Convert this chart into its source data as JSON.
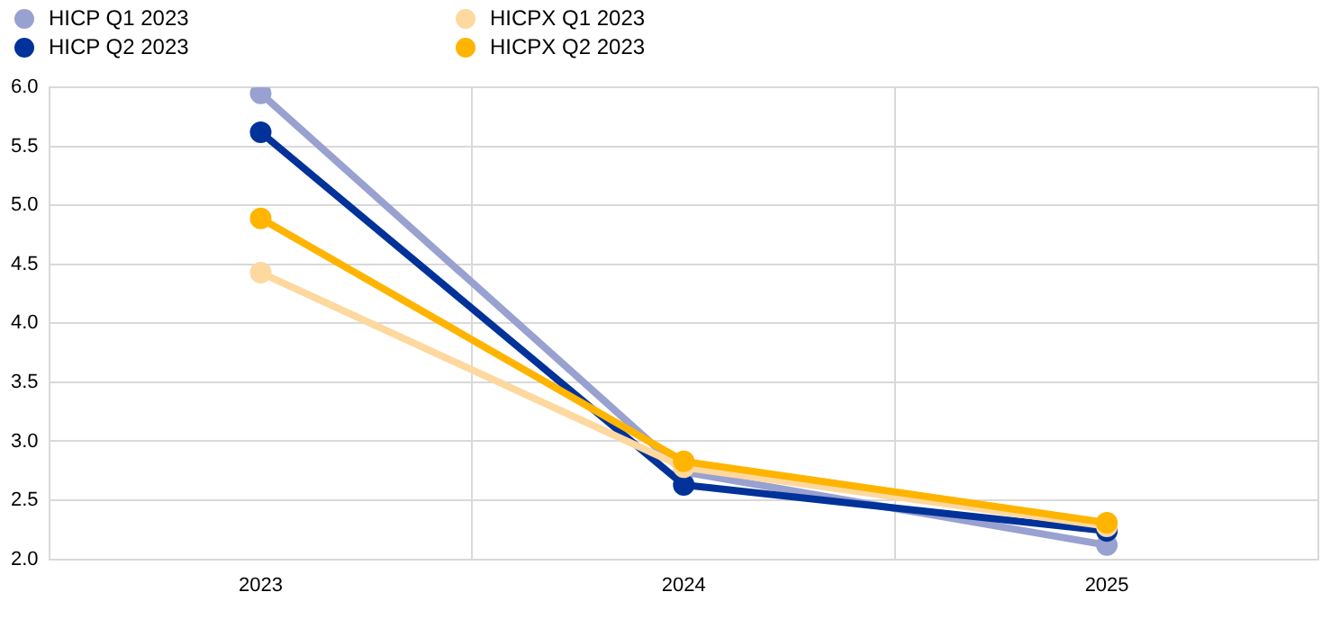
{
  "chart_data": {
    "type": "line",
    "categories": [
      "2023",
      "2024",
      "2025"
    ],
    "series": [
      {
        "name": "HICP Q1 2023",
        "color": "#98a1d0",
        "values": [
          5.95,
          2.74,
          2.12
        ]
      },
      {
        "name": "HICP Q2 2023",
        "color": "#003299",
        "values": [
          5.62,
          2.63,
          2.24
        ]
      },
      {
        "name": "HICPX Q1 2023",
        "color": "#fdd89f",
        "values": [
          4.43,
          2.78,
          2.28
        ]
      },
      {
        "name": "HICPX Q2 2023",
        "color": "#ffb400",
        "values": [
          4.89,
          2.83,
          2.31
        ]
      }
    ],
    "ylim": [
      2.0,
      6.0
    ],
    "yticks": [
      {
        "value": 2,
        "label": "2.0"
      },
      "2.5",
      {
        "value": 3,
        "label": "3.0"
      },
      "3.5",
      {
        "value": 4,
        "label": "4.0"
      },
      "4.5",
      {
        "value": 5,
        "label": "5.0"
      },
      "5.5",
      {
        "value": 6,
        "label": "6.0"
      }
    ],
    "grid": true,
    "legend": "top left",
    "marker": "circle",
    "line_style": "solid"
  }
}
